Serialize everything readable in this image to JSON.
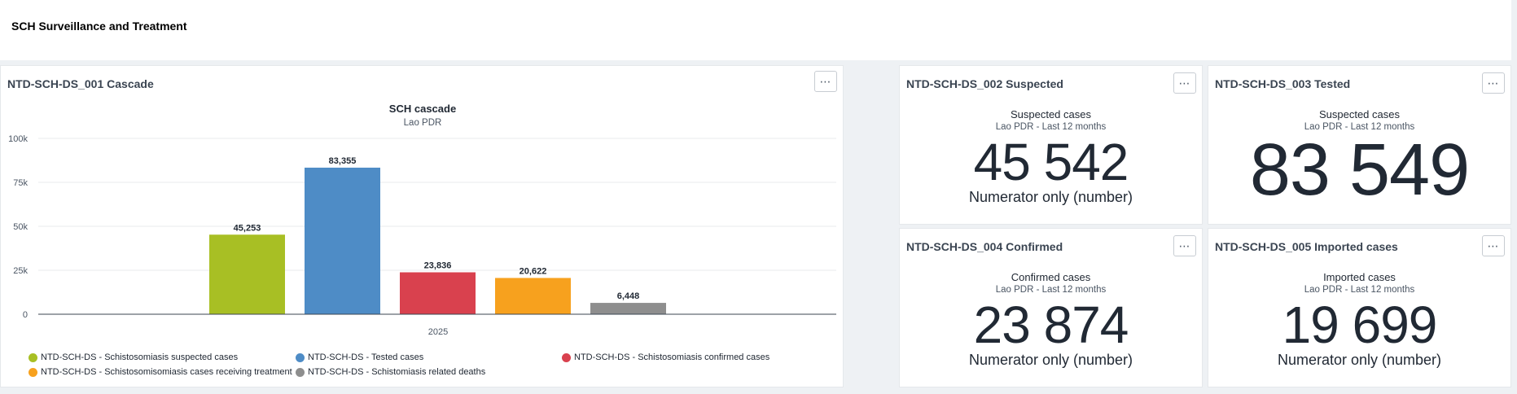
{
  "page": {
    "title": "SCH Surveillance and Treatment"
  },
  "cascade": {
    "title": "NTD-SCH-DS_001 Cascade",
    "menu_label": "⋯"
  },
  "chart_data": {
    "type": "bar",
    "title": "SCH cascade",
    "subtitle": "Lao PDR",
    "categories": [
      "2025"
    ],
    "yticks": [
      "0",
      "25k",
      "50k",
      "75k",
      "100k"
    ],
    "ylim": [
      0,
      100000
    ],
    "grid": true,
    "legend_position": "bottom",
    "series": [
      {
        "name": "NTD-SCH-DS - Schistosomiasis suspected cases",
        "value": 45253,
        "label": "45,253",
        "color": "#a8bf24"
      },
      {
        "name": "NTD-SCH-DS - Tested cases",
        "value": 83355,
        "label": "83,355",
        "color": "#4e8cc6"
      },
      {
        "name": "NTD-SCH-DS - Schistosomiasis confirmed cases",
        "value": 23836,
        "label": "23,836",
        "color": "#d9414e"
      },
      {
        "name": "NTD-SCH-DS - Schistosomisomiasis cases receiving treatment",
        "value": 20622,
        "label": "20,622",
        "color": "#f7a11e"
      },
      {
        "name": "NTD-SCH-DS - Schistomiasis related deaths",
        "value": 6448,
        "label": "6,448",
        "color": "#8e8e8e"
      }
    ]
  },
  "single_values": [
    {
      "title": "NTD-SCH-DS_002 Suspected",
      "label": "Suspected cases",
      "sub": "Lao PDR - Last 12 months",
      "value": "45 542",
      "desc": "Numerator only (number)"
    },
    {
      "title": "NTD-SCH-DS_003 Tested",
      "label": "Suspected cases",
      "sub": "Lao PDR - Last 12 months",
      "value": "83 549",
      "desc": ""
    },
    {
      "title": "NTD-SCH-DS_004 Confirmed",
      "label": "Confirmed cases",
      "sub": "Lao PDR - Last 12 months",
      "value": "23 874",
      "desc": "Numerator only (number)"
    },
    {
      "title": "NTD-SCH-DS_005 Imported cases",
      "label": "Imported cases",
      "sub": "Lao PDR - Last 12 months",
      "value": "19 699",
      "desc": "Numerator only (number)"
    }
  ],
  "menu_label": "⋯"
}
